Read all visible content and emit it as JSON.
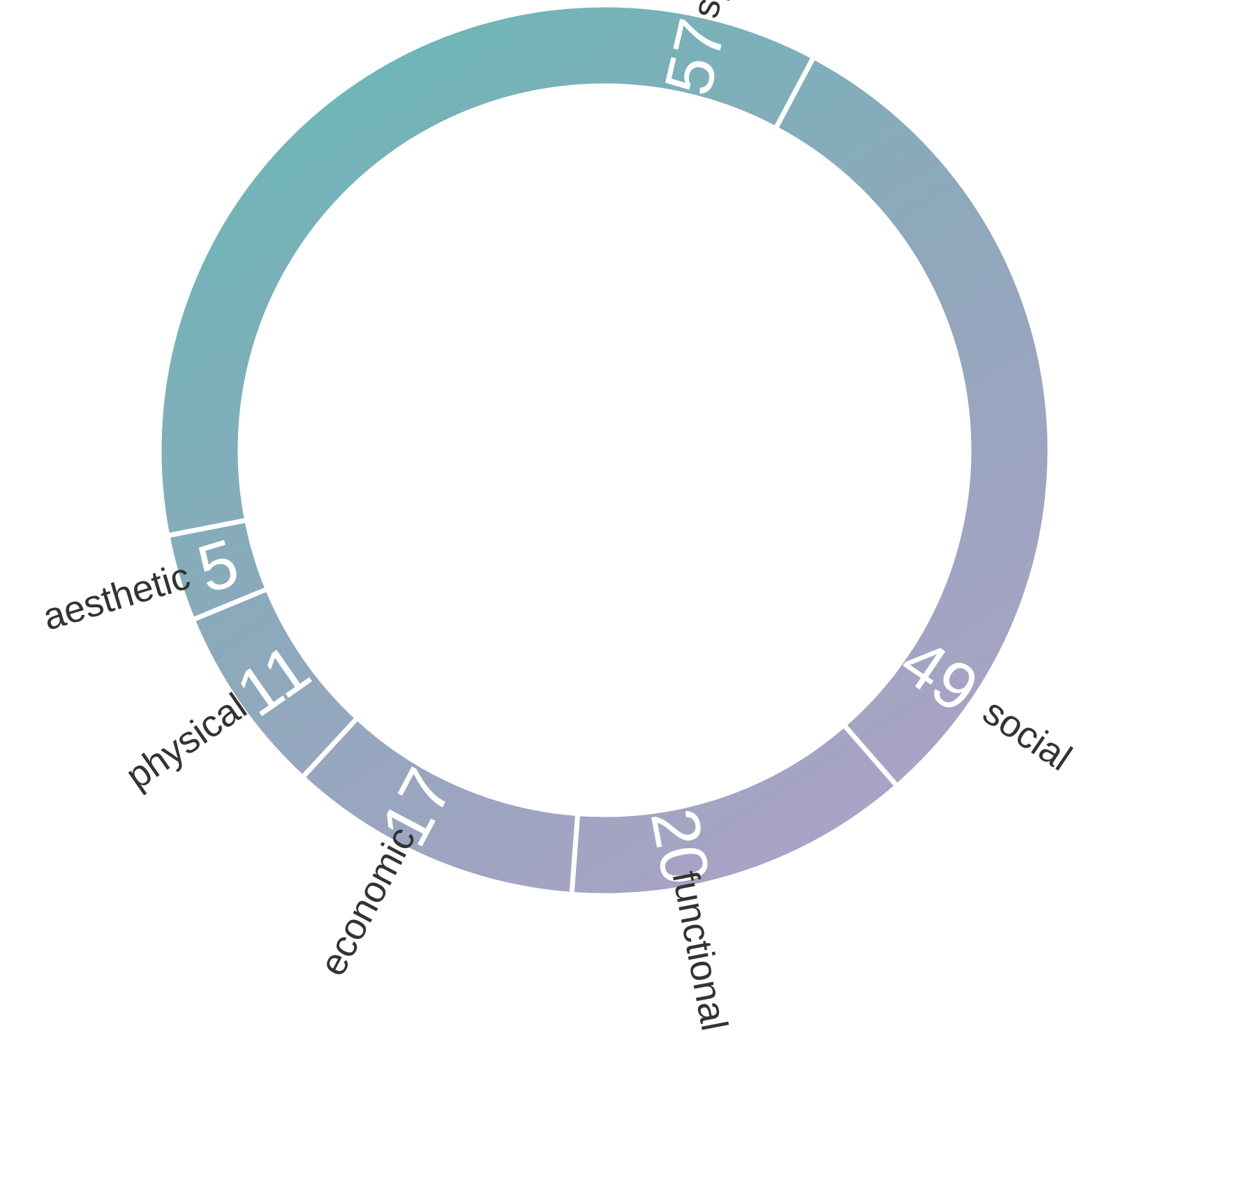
{
  "chart_data": {
    "type": "pie",
    "style": "donut",
    "title": "",
    "categories": [
      "social",
      "functional",
      "economic",
      "physical",
      "aesthetic",
      "spiritual"
    ],
    "values": [
      49,
      20,
      17,
      11,
      5,
      57
    ],
    "value_labels": [
      "49",
      "20",
      "17",
      "11",
      "5",
      "57"
    ],
    "colors": {
      "teal": "#6ab8b6",
      "blue_gray": "#8fa8bc",
      "lavender": "#a7a3c4",
      "mauve": "#c3a2cc"
    },
    "legend": "none",
    "labels_position": "outside"
  }
}
